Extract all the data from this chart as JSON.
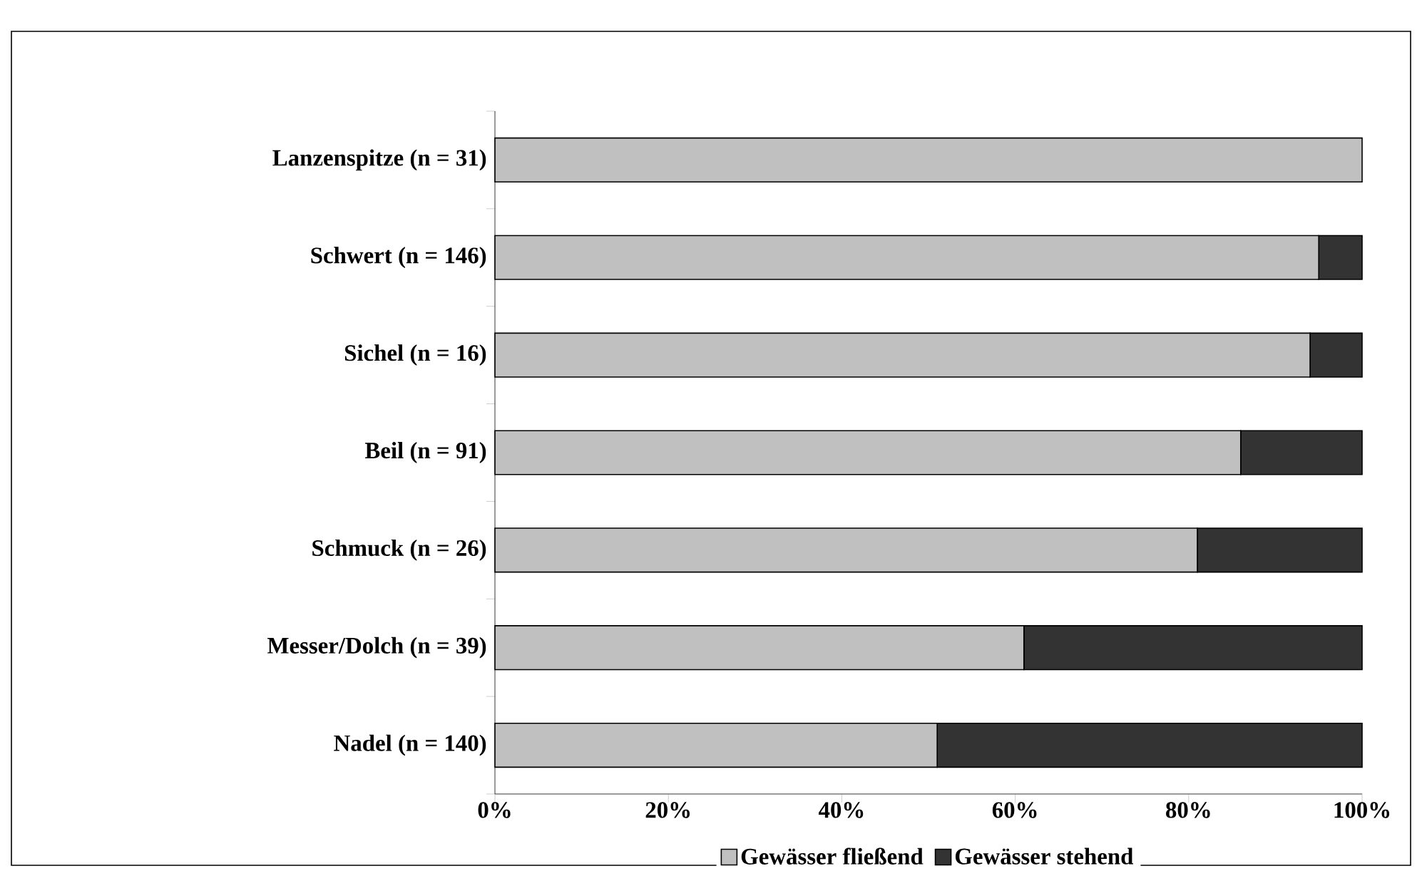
{
  "chart_data": {
    "type": "bar",
    "orientation": "horizontal",
    "stacked": true,
    "categories": [
      "Lanzenspitze (n = 31)",
      "Schwert (n = 146)",
      "Sichel (n = 16)",
      "Beil (n = 91)",
      "Schmuck (n = 26)",
      "Messer/Dolch (n = 39)",
      "Nadel (n = 140)"
    ],
    "series": [
      {
        "name": "Gewässer fließend",
        "color": "#c0c0c0",
        "values": [
          100,
          95,
          94,
          86,
          81,
          61,
          51
        ]
      },
      {
        "name": "Gewässer stehend",
        "color": "#333333",
        "values": [
          0,
          5,
          6,
          14,
          19,
          39,
          49
        ]
      }
    ],
    "xlim": [
      0,
      100
    ],
    "xticks": [
      {
        "value": 0,
        "label": "0%"
      },
      {
        "value": 20,
        "label": "20%"
      },
      {
        "value": 40,
        "label": "40%"
      },
      {
        "value": 60,
        "label": "60%"
      },
      {
        "value": 80,
        "label": "80%"
      },
      {
        "value": 100,
        "label": "100%"
      }
    ],
    "legend": "bottom"
  }
}
